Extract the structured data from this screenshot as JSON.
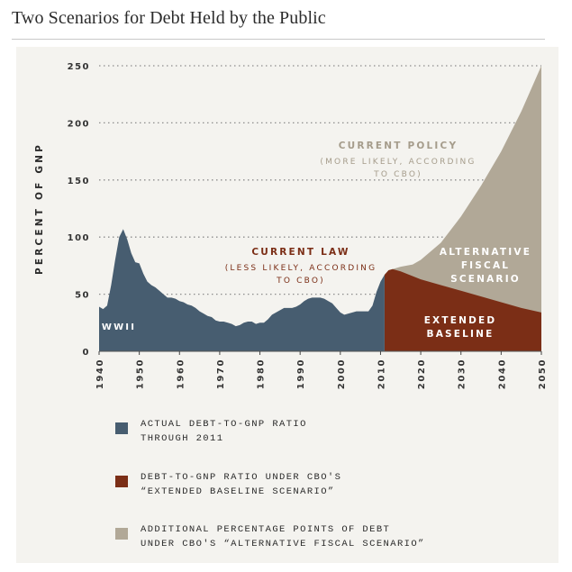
{
  "page": {
    "title": "Two Scenarios for Debt Held by the Public"
  },
  "colors": {
    "actual": "#475d70",
    "extended": "#7b2e16",
    "alternative": "#b1a897",
    "panel": "#f4f3ef"
  },
  "chart_data": {
    "type": "area",
    "title": "Two Scenarios for Debt Held by the Public",
    "xlabel": "",
    "ylabel": "PERCENT OF GNP",
    "xlim": [
      1940,
      2050
    ],
    "ylim": [
      0,
      250
    ],
    "xticks": [
      1940,
      1950,
      1960,
      1970,
      1980,
      1990,
      2000,
      2010,
      2020,
      2030,
      2040,
      2050
    ],
    "yticks": [
      0,
      50,
      100,
      150,
      200,
      250
    ],
    "grid": true,
    "series": [
      {
        "name": "Actual debt-to-GNP ratio through 2011",
        "x": [
          1940,
          1941,
          1942,
          1943,
          1944,
          1945,
          1946,
          1947,
          1948,
          1949,
          1950,
          1951,
          1952,
          1953,
          1954,
          1955,
          1956,
          1957,
          1958,
          1959,
          1960,
          1961,
          1962,
          1963,
          1964,
          1965,
          1966,
          1967,
          1968,
          1969,
          1970,
          1971,
          1972,
          1973,
          1974,
          1975,
          1976,
          1977,
          1978,
          1979,
          1980,
          1981,
          1982,
          1983,
          1984,
          1985,
          1986,
          1987,
          1988,
          1989,
          1990,
          1991,
          1992,
          1993,
          1994,
          1995,
          1996,
          1997,
          1998,
          1999,
          2000,
          2001,
          2002,
          2003,
          2004,
          2005,
          2006,
          2007,
          2008,
          2009,
          2010,
          2011
        ],
        "values": [
          39,
          37,
          40,
          58,
          80,
          100,
          107,
          98,
          86,
          78,
          77,
          68,
          61,
          58,
          56,
          53,
          50,
          47,
          47,
          46,
          44,
          43,
          41,
          40,
          38,
          35,
          33,
          31,
          30,
          27,
          26,
          26,
          25,
          24,
          22,
          23,
          25,
          26,
          26,
          24,
          25,
          25,
          28,
          32,
          34,
          36,
          38,
          38,
          38,
          39,
          41,
          44,
          46,
          47,
          47,
          47,
          46,
          44,
          42,
          38,
          34,
          32,
          33,
          34,
          35,
          35,
          35,
          35,
          40,
          52,
          61,
          67
        ]
      },
      {
        "name": "Debt-to-GNP ratio under CBO's Extended Baseline Scenario",
        "x": [
          2011,
          2012,
          2013,
          2015,
          2020,
          2025,
          2030,
          2035,
          2040,
          2045,
          2050
        ],
        "values": [
          67,
          71,
          72,
          70,
          63,
          58,
          53,
          48,
          43,
          38,
          34
        ]
      },
      {
        "name": "Debt-to-GNP ratio under CBO's Alternative Fiscal Scenario",
        "x": [
          2011,
          2012,
          2013,
          2015,
          2018,
          2020,
          2025,
          2030,
          2035,
          2040,
          2045,
          2050
        ],
        "values": [
          67,
          71,
          72,
          74,
          76,
          80,
          95,
          118,
          145,
          175,
          210,
          250
        ]
      }
    ],
    "annotations": [
      {
        "id": "wwii",
        "text": "WWII"
      },
      {
        "id": "current_policy",
        "text": "CURRENT POLICY",
        "subtext": [
          "(MORE LIKELY, ACCORDING",
          "TO CBO)"
        ]
      },
      {
        "id": "current_law",
        "text": "CURRENT LAW",
        "subtext": [
          "(LESS LIKELY, ACCORDING",
          "TO CBO)"
        ]
      },
      {
        "id": "alternative",
        "lines": [
          "ALTERNATIVE",
          "FISCAL",
          "SCENARIO"
        ]
      },
      {
        "id": "extended",
        "lines": [
          "EXTENDED",
          "BASELINE"
        ]
      }
    ]
  },
  "legend": [
    {
      "color_key": "actual",
      "lines": [
        "ACTUAL DEBT-TO-GNP RATIO",
        "THROUGH 2011"
      ]
    },
    {
      "color_key": "extended",
      "lines": [
        "DEBT-TO-GNP RATIO UNDER CBO'S",
        "“EXTENDED BASELINE SCENARIO”"
      ]
    },
    {
      "color_key": "alternative",
      "lines": [
        "ADDITIONAL PERCENTAGE POINTS OF DEBT",
        "UNDER CBO'S “ALTERNATIVE FISCAL SCENARIO”"
      ]
    }
  ]
}
